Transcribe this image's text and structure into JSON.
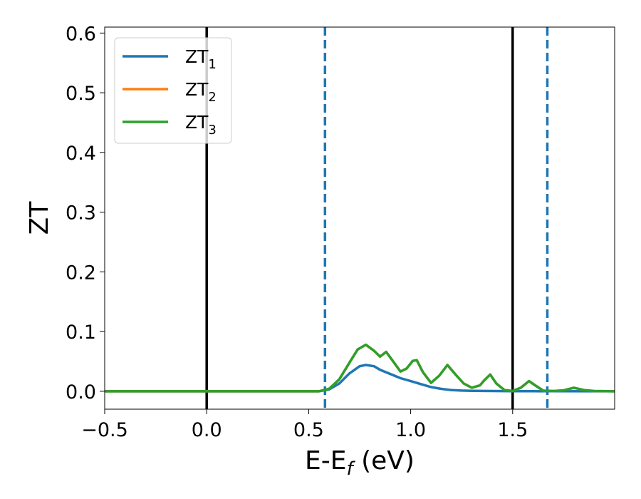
{
  "chart_data": {
    "type": "line",
    "xlabel": {
      "main": "E-E",
      "sub": "f",
      "unit": " (eV)"
    },
    "ylabel": "ZT",
    "xlim": [
      -0.5,
      2.0
    ],
    "ylim": [
      -0.03,
      0.61
    ],
    "xticks": [
      -0.5,
      0.0,
      0.5,
      1.0,
      1.5
    ],
    "xtick_labels": [
      "−0.5",
      "0.0",
      "0.5",
      "1.0",
      "1.5"
    ],
    "yticks": [
      0.0,
      0.1,
      0.2,
      0.3,
      0.4,
      0.5,
      0.6
    ],
    "ytick_labels": [
      "0.0",
      "0.1",
      "0.2",
      "0.3",
      "0.4",
      "0.5",
      "0.6"
    ],
    "grid": false,
    "legend_position": "top-left",
    "vlines": [
      {
        "x": 0.0,
        "color": "#000000",
        "style": "solid"
      },
      {
        "x": 1.5,
        "color": "#000000",
        "style": "solid"
      },
      {
        "x": 0.58,
        "color": "#1f77b4",
        "style": "dashed"
      },
      {
        "x": 1.67,
        "color": "#1f77b4",
        "style": "dashed"
      }
    ],
    "series": [
      {
        "name": "ZT",
        "sub": "1",
        "color": "#1f77b4",
        "x": [
          -0.5,
          0.55,
          0.6,
          0.65,
          0.7,
          0.75,
          0.78,
          0.82,
          0.85,
          0.9,
          0.95,
          1.0,
          1.05,
          1.1,
          1.15,
          1.2,
          1.25,
          1.3,
          1.4,
          1.5,
          1.6,
          2.0
        ],
        "y": [
          0,
          0,
          0.003,
          0.013,
          0.03,
          0.042,
          0.044,
          0.042,
          0.036,
          0.029,
          0.022,
          0.017,
          0.012,
          0.007,
          0.004,
          0.002,
          0.0012,
          0.0008,
          0.0004,
          0.0002,
          0.0001,
          0
        ]
      },
      {
        "name": "ZT",
        "sub": "2",
        "color": "#ff7f0e",
        "x": [
          -0.5,
          0.55,
          0.6,
          0.65,
          0.7,
          0.74,
          0.78,
          0.82,
          0.85,
          0.88,
          0.91,
          0.95,
          0.98,
          1.01,
          1.03,
          1.06,
          1.1,
          1.14,
          1.18,
          1.22,
          1.26,
          1.3,
          1.34,
          1.36,
          1.39,
          1.42,
          1.46,
          1.5,
          1.54,
          1.58,
          1.61,
          1.65,
          1.7,
          1.75,
          1.8,
          1.85,
          1.9,
          2.0
        ],
        "y": [
          0,
          0,
          0.004,
          0.02,
          0.048,
          0.07,
          0.078,
          0.068,
          0.058,
          0.066,
          0.052,
          0.033,
          0.038,
          0.051,
          0.052,
          0.032,
          0.014,
          0.026,
          0.044,
          0.028,
          0.013,
          0.006,
          0.01,
          0.018,
          0.028,
          0.013,
          0.002,
          0.0005,
          0.006,
          0.017,
          0.01,
          0.001,
          0.0005,
          0.0015,
          0.006,
          0.002,
          0.0005,
          0
        ]
      },
      {
        "name": "ZT",
        "sub": "3",
        "color": "#2ca02c",
        "x": [
          -0.5,
          0.55,
          0.6,
          0.65,
          0.7,
          0.74,
          0.78,
          0.82,
          0.85,
          0.88,
          0.91,
          0.95,
          0.98,
          1.01,
          1.03,
          1.06,
          1.1,
          1.14,
          1.18,
          1.22,
          1.26,
          1.3,
          1.34,
          1.36,
          1.39,
          1.42,
          1.46,
          1.5,
          1.54,
          1.58,
          1.61,
          1.65,
          1.7,
          1.75,
          1.8,
          1.85,
          1.9,
          2.0
        ],
        "y": [
          0,
          0,
          0.004,
          0.02,
          0.048,
          0.07,
          0.078,
          0.068,
          0.058,
          0.066,
          0.052,
          0.033,
          0.038,
          0.051,
          0.052,
          0.032,
          0.014,
          0.026,
          0.044,
          0.028,
          0.013,
          0.006,
          0.01,
          0.018,
          0.028,
          0.013,
          0.002,
          0.0005,
          0.006,
          0.017,
          0.01,
          0.001,
          0.0005,
          0.0015,
          0.006,
          0.002,
          0.0005,
          0
        ]
      }
    ]
  }
}
